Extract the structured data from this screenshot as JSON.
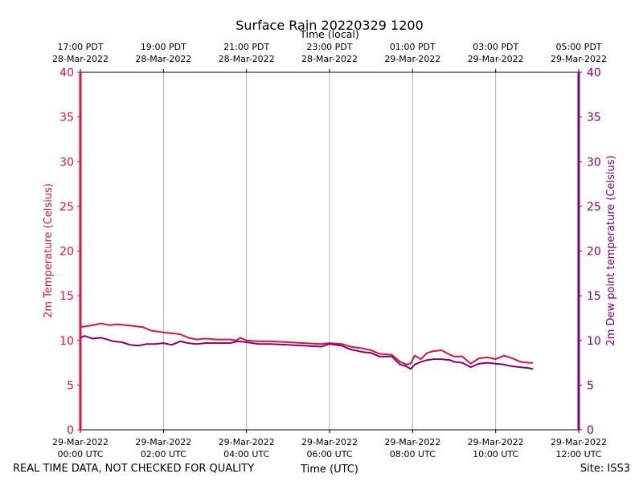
{
  "chart_data": {
    "type": "line",
    "title": "Surface Rain 20220329 1200",
    "top_axis_label": "Time (local)",
    "xlabel": "Time (UTC)",
    "ylabel_left": "2m Temperature (Celsius)",
    "ylabel_right": "2m Dew point temperature (Celsius)",
    "ylim": [
      0,
      40
    ],
    "yticks": [
      0,
      5,
      10,
      15,
      20,
      25,
      30,
      35,
      40
    ],
    "xlim_hours": [
      0,
      12
    ],
    "grid": "vertical",
    "bottom_ticks": [
      {
        "hour": 0,
        "date": "29-Mar-2022",
        "time": "00:00 UTC"
      },
      {
        "hour": 2,
        "date": "29-Mar-2022",
        "time": "02:00 UTC"
      },
      {
        "hour": 4,
        "date": "29-Mar-2022",
        "time": "04:00 UTC"
      },
      {
        "hour": 6,
        "date": "29-Mar-2022",
        "time": "06:00 UTC"
      },
      {
        "hour": 8,
        "date": "29-Mar-2022",
        "time": "08:00 UTC"
      },
      {
        "hour": 10,
        "date": "29-Mar-2022",
        "time": "10:00 UTC"
      },
      {
        "hour": 12,
        "date": "29-Mar-2022",
        "time": "12:00 UTC"
      }
    ],
    "top_ticks": [
      {
        "hour": 0,
        "time": "17:00 PDT",
        "date": "28-Mar-2022"
      },
      {
        "hour": 2,
        "time": "19:00 PDT",
        "date": "28-Mar-2022"
      },
      {
        "hour": 4,
        "time": "21:00 PDT",
        "date": "28-Mar-2022"
      },
      {
        "hour": 6,
        "time": "23:00 PDT",
        "date": "28-Mar-2022"
      },
      {
        "hour": 8,
        "time": "01:00 PDT",
        "date": "29-Mar-2022"
      },
      {
        "hour": 10,
        "time": "03:00 PDT",
        "date": "29-Mar-2022"
      },
      {
        "hour": 12,
        "time": "05:00 PDT",
        "date": "29-Mar-2022"
      }
    ],
    "series": [
      {
        "name": "2m Temperature",
        "color": "#dc143c",
        "x": [
          0,
          0.15,
          0.3,
          0.5,
          0.7,
          0.9,
          1.1,
          1.3,
          1.5,
          1.7,
          1.85,
          2.0,
          2.2,
          2.4,
          2.6,
          2.8,
          3.0,
          3.3,
          3.6,
          3.75,
          3.85,
          4.0,
          4.3,
          4.6,
          5.0,
          5.4,
          5.8,
          6.0,
          6.3,
          6.5,
          6.8,
          7.0,
          7.2,
          7.5,
          7.7,
          7.85,
          7.95,
          8.05,
          8.2,
          8.35,
          8.5,
          8.7,
          8.9,
          9.0,
          9.2,
          9.4,
          9.6,
          9.8,
          10.0,
          10.2,
          10.4,
          10.6,
          10.8,
          10.9
        ],
        "values": [
          11.5,
          11.6,
          11.7,
          11.9,
          11.7,
          11.8,
          11.7,
          11.6,
          11.5,
          11.1,
          11.0,
          10.9,
          10.8,
          10.7,
          10.3,
          10.1,
          10.2,
          10.1,
          10.1,
          10.0,
          10.3,
          10.0,
          9.9,
          9.9,
          9.8,
          9.7,
          9.6,
          9.7,
          9.6,
          9.3,
          9.1,
          8.9,
          8.5,
          8.4,
          7.6,
          7.3,
          7.4,
          8.3,
          7.9,
          8.6,
          8.8,
          8.9,
          8.4,
          8.2,
          8.2,
          7.4,
          8.0,
          8.1,
          7.9,
          8.3,
          8.0,
          7.6,
          7.5,
          7.5
        ]
      },
      {
        "name": "2m Dew point temperature",
        "color": "#800080",
        "x": [
          0,
          0.1,
          0.3,
          0.5,
          0.8,
          1.0,
          1.2,
          1.4,
          1.6,
          1.8,
          2.0,
          2.2,
          2.4,
          2.6,
          2.8,
          3.0,
          3.3,
          3.6,
          3.8,
          4.0,
          4.3,
          4.6,
          5.0,
          5.4,
          5.8,
          6.0,
          6.3,
          6.5,
          6.8,
          7.0,
          7.2,
          7.5,
          7.7,
          7.85,
          7.95,
          8.05,
          8.2,
          8.35,
          8.5,
          8.7,
          8.9,
          9.0,
          9.2,
          9.4,
          9.6,
          9.8,
          10.0,
          10.2,
          10.4,
          10.6,
          10.8,
          10.9
        ],
        "values": [
          10.3,
          10.5,
          10.2,
          10.3,
          9.9,
          9.8,
          9.5,
          9.4,
          9.6,
          9.6,
          9.7,
          9.5,
          9.9,
          9.7,
          9.6,
          9.7,
          9.7,
          9.7,
          9.9,
          9.8,
          9.6,
          9.6,
          9.5,
          9.4,
          9.3,
          9.6,
          9.4,
          9.0,
          8.7,
          8.6,
          8.2,
          8.2,
          7.3,
          7.1,
          6.8,
          7.3,
          7.6,
          7.8,
          7.9,
          7.9,
          7.8,
          7.6,
          7.5,
          7.0,
          7.4,
          7.5,
          7.4,
          7.3,
          7.1,
          7.0,
          6.9,
          6.8
        ]
      }
    ],
    "footer_left": "REAL TIME DATA, NOT CHECKED FOR QUALITY",
    "footer_right": "Site: ISS3"
  }
}
